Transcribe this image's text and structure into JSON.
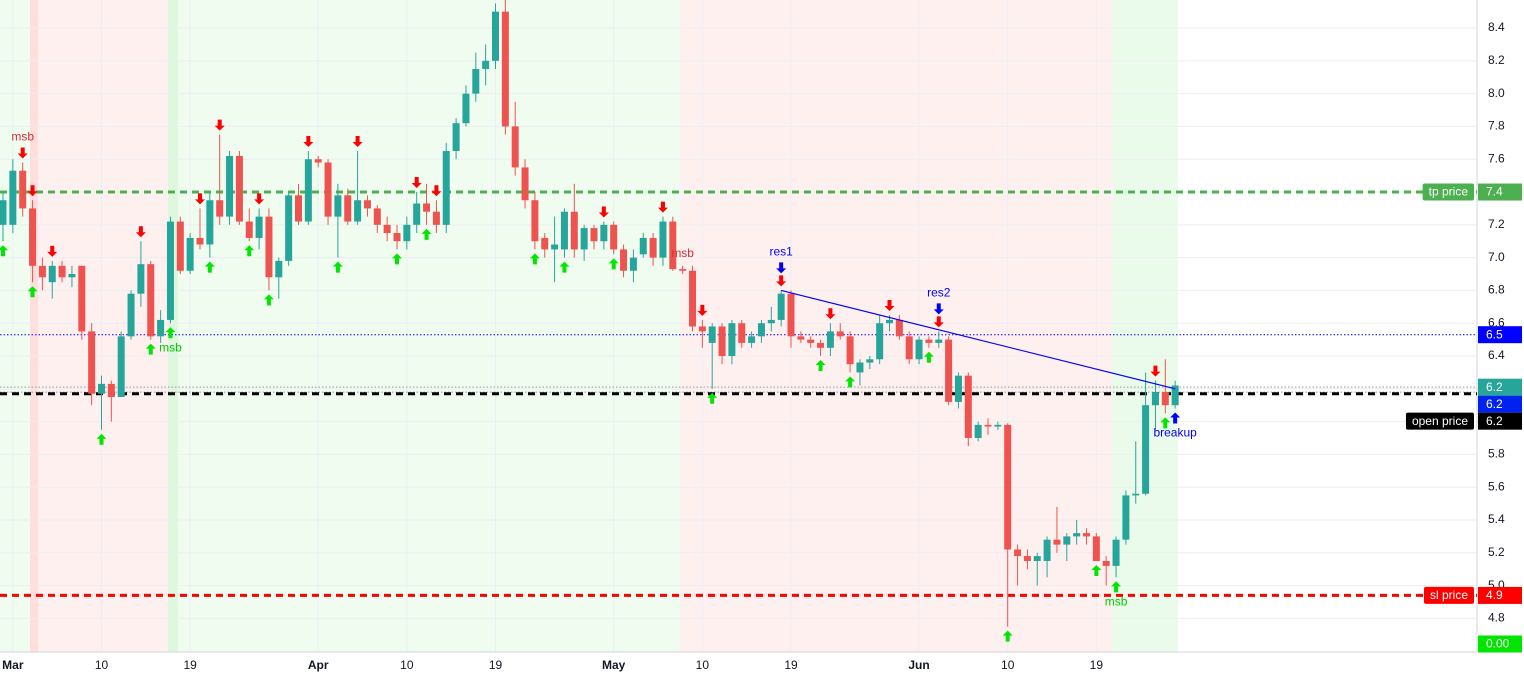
{
  "chart_data": {
    "type": "candlestick",
    "categories": [
      null,
      "Mar",
      null,
      null,
      null,
      null,
      null,
      null,
      null,
      null,
      "10",
      null,
      null,
      null,
      null,
      null,
      null,
      null,
      null,
      "19",
      null,
      null,
      null,
      null,
      null,
      null,
      null,
      null,
      null,
      null,
      null,
      null,
      "Apr",
      null,
      null,
      null,
      null,
      null,
      null,
      null,
      null,
      "10",
      null,
      null,
      null,
      null,
      null,
      null,
      null,
      null,
      "19",
      null,
      null,
      null,
      null,
      null,
      null,
      null,
      null,
      null,
      null,
      null,
      "May",
      null,
      null,
      null,
      null,
      null,
      null,
      null,
      null,
      "10",
      null,
      null,
      null,
      null,
      null,
      null,
      null,
      null,
      "19",
      null,
      null,
      null,
      null,
      null,
      null,
      null,
      null,
      null,
      null,
      null,
      null,
      "Jun",
      null,
      null,
      null,
      null,
      null,
      null,
      null,
      null,
      "10",
      null,
      null,
      null,
      null,
      null,
      null,
      null,
      null,
      "19",
      null,
      null,
      null,
      null,
      null,
      null,
      null,
      null
    ],
    "open": [
      7.2,
      7.2,
      7.53,
      7.3,
      6.95,
      6.85,
      6.95,
      6.88,
      6.95,
      6.55,
      6.17,
      6.23,
      6.15,
      6.52,
      6.78,
      6.96,
      6.52,
      6.62,
      7.22,
      6.92,
      7.12,
      7.08,
      7.35,
      7.25,
      7.62,
      7.22,
      7.12,
      7.25,
      6.88,
      6.98,
      7.38,
      7.22,
      7.6,
      7.58,
      7.25,
      7.38,
      7.22,
      7.35,
      7.3,
      7.2,
      7.15,
      7.1,
      7.2,
      7.33,
      7.28,
      7.2,
      7.65,
      7.82,
      8.0,
      8.15,
      8.2,
      8.5,
      7.8,
      7.55,
      7.35,
      7.12,
      7.05,
      7.05,
      7.28,
      7.05,
      7.18,
      7.1,
      7.2,
      7.05,
      6.92,
      7.02,
      7.12,
      7.0,
      7.22,
      6.93,
      6.92,
      6.58,
      6.48,
      6.58,
      6.4,
      6.6,
      6.48,
      6.52,
      6.6,
      6.62,
      6.78,
      6.52,
      6.5,
      6.48,
      6.45,
      6.55,
      6.52,
      6.3,
      6.36,
      6.38,
      6.6,
      6.62,
      6.52,
      6.38,
      6.5,
      6.48,
      6.5,
      6.12,
      6.28,
      5.9,
      5.98,
      5.97,
      5.98,
      5.22,
      5.18,
      5.15,
      5.15,
      5.28,
      5.25,
      5.3,
      5.32,
      5.3,
      5.15,
      5.12,
      5.28,
      5.55,
      5.56,
      6.1,
      6.18,
      6.1
    ],
    "high": [
      7.4,
      7.6,
      7.58,
      7.35,
      7.0,
      6.98,
      6.98,
      6.95,
      6.95,
      6.6,
      6.28,
      6.25,
      6.55,
      6.8,
      7.1,
      6.98,
      6.68,
      7.25,
      7.25,
      7.15,
      7.3,
      7.4,
      7.75,
      7.65,
      7.65,
      7.3,
      7.3,
      7.3,
      7.0,
      7.4,
      7.45,
      7.65,
      7.62,
      7.6,
      7.45,
      7.42,
      7.65,
      7.38,
      7.32,
      7.25,
      7.2,
      7.25,
      7.4,
      7.45,
      7.35,
      7.7,
      7.85,
      8.05,
      8.25,
      8.3,
      8.55,
      8.6,
      7.95,
      7.6,
      7.4,
      7.15,
      7.25,
      7.3,
      7.45,
      7.2,
      7.2,
      7.22,
      7.22,
      7.08,
      7.05,
      7.15,
      7.15,
      7.25,
      7.25,
      6.95,
      6.95,
      6.62,
      6.6,
      6.6,
      6.62,
      6.62,
      6.55,
      6.62,
      6.7,
      6.8,
      6.8,
      6.55,
      6.52,
      6.5,
      6.6,
      6.6,
      6.55,
      6.38,
      6.4,
      6.65,
      6.65,
      6.65,
      6.55,
      6.52,
      6.52,
      6.55,
      6.52,
      6.3,
      6.3,
      6.0,
      6.02,
      6.0,
      5.99,
      5.25,
      5.22,
      5.2,
      5.3,
      5.48,
      5.32,
      5.4,
      5.35,
      5.32,
      5.18,
      5.3,
      5.58,
      5.88,
      6.3,
      6.25,
      6.38,
      6.25
    ],
    "low": [
      7.1,
      7.15,
      7.25,
      6.85,
      6.8,
      6.75,
      6.85,
      6.82,
      6.5,
      6.1,
      5.95,
      6.0,
      6.15,
      6.5,
      6.7,
      6.5,
      6.48,
      6.6,
      6.9,
      6.9,
      7.05,
      7.0,
      7.2,
      7.2,
      7.2,
      7.1,
      7.05,
      6.8,
      6.75,
      6.95,
      7.2,
      7.2,
      7.55,
      7.2,
      7.0,
      7.2,
      7.2,
      7.25,
      7.15,
      7.1,
      7.05,
      7.05,
      7.15,
      7.2,
      7.15,
      7.15,
      7.6,
      7.8,
      7.95,
      8.05,
      8.15,
      7.75,
      7.5,
      7.3,
      7.05,
      7.0,
      6.85,
      7.0,
      7.0,
      6.98,
      7.05,
      7.05,
      7.02,
      6.88,
      6.85,
      7.0,
      6.95,
      6.95,
      6.92,
      6.9,
      6.55,
      6.45,
      6.2,
      6.35,
      6.35,
      6.45,
      6.45,
      6.48,
      6.55,
      6.58,
      6.45,
      6.48,
      6.45,
      6.4,
      6.4,
      6.5,
      6.3,
      6.22,
      6.32,
      6.35,
      6.55,
      6.5,
      6.35,
      6.35,
      6.45,
      6.45,
      6.1,
      6.08,
      5.85,
      5.88,
      5.92,
      5.95,
      4.75,
      5.0,
      5.1,
      5.0,
      5.05,
      5.2,
      5.15,
      5.25,
      5.25,
      5.15,
      5.0,
      5.05,
      5.25,
      5.5,
      5.55,
      5.95,
      6.05,
      6.08
    ],
    "close": [
      7.35,
      7.53,
      7.3,
      6.95,
      6.88,
      6.95,
      6.88,
      6.9,
      6.55,
      6.17,
      6.23,
      6.15,
      6.52,
      6.78,
      6.96,
      6.52,
      6.62,
      7.22,
      6.92,
      7.12,
      7.08,
      7.35,
      7.25,
      7.62,
      7.22,
      7.12,
      7.25,
      6.88,
      6.98,
      7.38,
      7.22,
      7.6,
      7.58,
      7.25,
      7.38,
      7.22,
      7.35,
      7.3,
      7.2,
      7.15,
      7.1,
      7.2,
      7.33,
      7.28,
      7.2,
      7.65,
      7.82,
      8.0,
      8.15,
      8.2,
      8.5,
      7.8,
      7.55,
      7.35,
      7.1,
      7.05,
      7.08,
      7.28,
      7.05,
      7.18,
      7.1,
      7.2,
      7.05,
      6.92,
      7.0,
      7.12,
      7.0,
      7.22,
      6.93,
      6.92,
      6.58,
      6.55,
      6.58,
      6.4,
      6.6,
      6.48,
      6.52,
      6.6,
      6.62,
      6.78,
      6.52,
      6.5,
      6.48,
      6.45,
      6.55,
      6.52,
      6.35,
      6.36,
      6.38,
      6.6,
      6.62,
      6.52,
      6.38,
      6.5,
      6.48,
      6.5,
      6.12,
      6.28,
      5.9,
      5.98,
      5.97,
      5.98,
      5.22,
      5.18,
      5.15,
      5.18,
      5.28,
      5.25,
      5.3,
      5.32,
      5.3,
      5.15,
      5.12,
      5.28,
      5.55,
      5.56,
      6.1,
      6.18,
      6.1,
      6.22
    ],
    "up_color": "#26a69a",
    "down_color": "#ef5350",
    "ylim": [
      4.595,
      8.571
    ],
    "yticks": [
      4.8,
      {
        "value": 5.0,
        "label": "5.0"
      },
      5.2,
      5.4,
      5.6,
      5.8,
      {
        "value": 6.0,
        "label": "6.0"
      },
      6.2,
      6.4,
      6.6,
      6.8,
      {
        "value": 7.0,
        "label": "7.0"
      },
      7.2,
      7.4,
      7.6,
      7.8,
      {
        "value": 8.0,
        "label": "8.0"
      },
      8.2,
      8.4
    ],
    "grid": true,
    "levels": [
      {
        "name": "tp price",
        "value": 7.4,
        "label": "7.4",
        "color": "#4caf50"
      },
      {
        "name": "open price",
        "value": 6.17,
        "label": "6.2",
        "color": "#000000"
      },
      {
        "name": "sl price",
        "value": 4.94,
        "label": "4.9",
        "color": "#ff0000"
      }
    ],
    "price_tags": [
      {
        "value": 6.53,
        "label": "6.5",
        "color": "#0000ff",
        "line": "#0000ff"
      },
      {
        "value": 6.21,
        "label": "6.2",
        "color": "#26a69a",
        "line": "#9598a1"
      },
      {
        "value": 6.18,
        "label": "6.2",
        "color": "#0022ee",
        "line": "#9598a1"
      },
      {
        "value": 0,
        "label": "0.00",
        "color": "#00e600"
      }
    ],
    "trendline": {
      "x": [
        79,
        119
      ],
      "values": [
        6.8,
        6.2
      ],
      "color": "#0000ff"
    },
    "signals": [
      {
        "dir": "down",
        "color": "#ff0000",
        "at": [
          2,
          3,
          5,
          14,
          20,
          22,
          26,
          31,
          36,
          42,
          44,
          61,
          67,
          71,
          79,
          84,
          90,
          95,
          117
        ]
      },
      {
        "dir": "up",
        "color": "#00e600",
        "at": [
          0,
          3,
          10,
          15,
          17,
          21,
          25,
          27,
          34,
          40,
          43,
          54,
          57,
          62,
          72,
          83,
          86,
          94,
          102,
          111,
          113,
          118
        ]
      },
      {
        "dir": "down",
        "color": "#0000ff",
        "at": [
          79,
          95
        ]
      },
      {
        "dir": "up",
        "color": "#0000ff",
        "at": [
          119
        ]
      }
    ],
    "annotations": [
      {
        "at": 2,
        "text": "msb",
        "color": "#d32f2f",
        "side": "above"
      },
      {
        "at": 17,
        "text": "msb",
        "color": "#00c800",
        "side": "below"
      },
      {
        "at": 69,
        "text": "msb",
        "color": "#d32f2f",
        "side": "above"
      },
      {
        "at": 113,
        "text": "msb",
        "color": "#00c800",
        "side": "below"
      },
      {
        "at": 79,
        "text": "res1",
        "color": "#0000ff",
        "side": "above"
      },
      {
        "at": 95,
        "text": "res2",
        "color": "#0000ff",
        "side": "above"
      },
      {
        "at": 119,
        "text": "breakup",
        "color": "#0000ff",
        "side": "below"
      }
    ]
  }
}
